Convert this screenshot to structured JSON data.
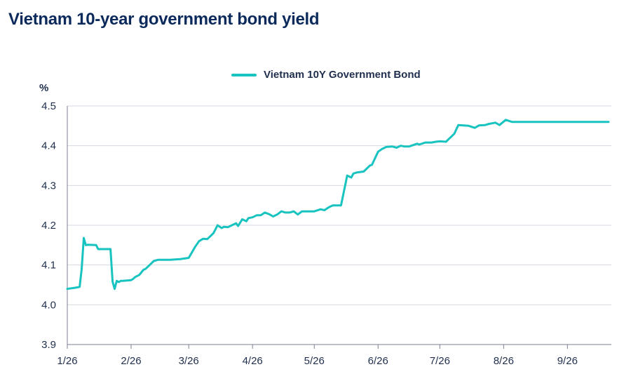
{
  "title": "Vietnam 10-year government bond yield",
  "chart_data": {
    "type": "line",
    "title": "Vietnam 10-year government bond yield",
    "ylabel": "%",
    "xlabel": "",
    "ylim": [
      3.9,
      4.5
    ],
    "y_ticks": [
      "3.9",
      "4.0",
      "4.1",
      "4.2",
      "4.3",
      "4.4",
      "4.5"
    ],
    "x_ticks": [
      "1/26",
      "2/26",
      "3/26",
      "4/26",
      "5/26",
      "6/26",
      "7/26",
      "8/26",
      "9/26"
    ],
    "grid": "horizontal",
    "legend_position": "top-center",
    "colors": {
      "series": "#19c3c0",
      "grid": "#d5d9e0",
      "text": "#1f2f4d",
      "title": "#0b2a5b"
    },
    "series": [
      {
        "name": "Vietnam 10Y Government Bond",
        "x": [
          "2026-01-01",
          "2026-01-05",
          "2026-01-07",
          "2026-01-08",
          "2026-01-09",
          "2026-01-10",
          "2026-01-11",
          "2026-01-15",
          "2026-01-16",
          "2026-01-20",
          "2026-01-22",
          "2026-01-23",
          "2026-01-24",
          "2026-01-25",
          "2026-01-26",
          "2026-01-27",
          "2026-01-28",
          "2026-02-01",
          "2026-02-02",
          "2026-02-03",
          "2026-02-05",
          "2026-02-07",
          "2026-02-08",
          "2026-02-10",
          "2026-02-12",
          "2026-02-14",
          "2026-02-16",
          "2026-02-20",
          "2026-02-25",
          "2026-03-01",
          "2026-03-04",
          "2026-03-06",
          "2026-03-08",
          "2026-03-10",
          "2026-03-12",
          "2026-03-13",
          "2026-03-14",
          "2026-03-15",
          "2026-03-17",
          "2026-03-18",
          "2026-03-20",
          "2026-03-22",
          "2026-03-24",
          "2026-03-25",
          "2026-03-27",
          "2026-03-29",
          "2026-03-30",
          "2026-04-01",
          "2026-04-03",
          "2026-04-05",
          "2026-04-07",
          "2026-04-09",
          "2026-04-11",
          "2026-04-13",
          "2026-04-15",
          "2026-04-17",
          "2026-04-19",
          "2026-04-21",
          "2026-04-23",
          "2026-04-25",
          "2026-04-28",
          "2026-05-01",
          "2026-05-04",
          "2026-05-06",
          "2026-05-08",
          "2026-05-10",
          "2026-05-12",
          "2026-05-14",
          "2026-05-17",
          "2026-05-19",
          "2026-05-20",
          "2026-05-22",
          "2026-05-25",
          "2026-05-27",
          "2026-05-28",
          "2026-05-29",
          "2026-06-01",
          "2026-06-03",
          "2026-06-05",
          "2026-06-08",
          "2026-06-10",
          "2026-06-12",
          "2026-06-14",
          "2026-06-16",
          "2026-06-20",
          "2026-06-21",
          "2026-06-24",
          "2026-06-27",
          "2026-06-29",
          "2026-07-01",
          "2026-07-04",
          "2026-07-06",
          "2026-07-08",
          "2026-07-10",
          "2026-07-15",
          "2026-07-18",
          "2026-07-20",
          "2026-07-23",
          "2026-07-25",
          "2026-07-28",
          "2026-07-30",
          "2026-08-02",
          "2026-08-05",
          "2026-08-08",
          "2026-08-10",
          "2026-08-13",
          "2026-08-15",
          "2026-08-17",
          "2026-08-20",
          "2026-08-22",
          "2026-08-24",
          "2026-08-26",
          "2026-08-28",
          "2026-08-30",
          "2026-09-02",
          "2026-09-06",
          "2026-09-10",
          "2026-09-13",
          "2026-09-15",
          "2026-09-17",
          "2026-09-19",
          "2026-09-21"
        ],
        "values": [
          4.04,
          4.043,
          4.045,
          4.09,
          4.168,
          4.15,
          4.151,
          4.15,
          4.14,
          4.14,
          4.14,
          4.058,
          4.04,
          4.06,
          4.057,
          4.06,
          4.06,
          4.062,
          4.065,
          4.07,
          4.075,
          4.088,
          4.09,
          4.1,
          4.11,
          4.113,
          4.113,
          4.113,
          4.115,
          4.118,
          4.145,
          4.16,
          4.166,
          4.165,
          4.175,
          4.18,
          4.19,
          4.2,
          4.193,
          4.196,
          4.195,
          4.2,
          4.205,
          4.198,
          4.215,
          4.21,
          4.218,
          4.22,
          4.225,
          4.225,
          4.232,
          4.228,
          4.222,
          4.227,
          4.235,
          4.232,
          4.232,
          4.235,
          4.227,
          4.235,
          4.235,
          4.235,
          4.24,
          4.238,
          4.245,
          4.25,
          4.25,
          4.25,
          4.325,
          4.32,
          4.33,
          4.333,
          4.335,
          4.345,
          4.35,
          4.352,
          4.385,
          4.392,
          4.397,
          4.398,
          4.395,
          4.4,
          4.398,
          4.398,
          4.405,
          4.403,
          4.408,
          4.408,
          4.41,
          4.411,
          4.41,
          4.42,
          4.43,
          4.452,
          4.45,
          4.445,
          4.451,
          4.452,
          4.455,
          4.458,
          4.452,
          4.465,
          4.46,
          4.46,
          4.46,
          4.46,
          4.46,
          4.46,
          4.46,
          4.46,
          4.46,
          4.46,
          4.46,
          4.46,
          4.46,
          4.46,
          4.46,
          4.46,
          4.46,
          4.46,
          4.46,
          4.46
        ]
      }
    ]
  }
}
